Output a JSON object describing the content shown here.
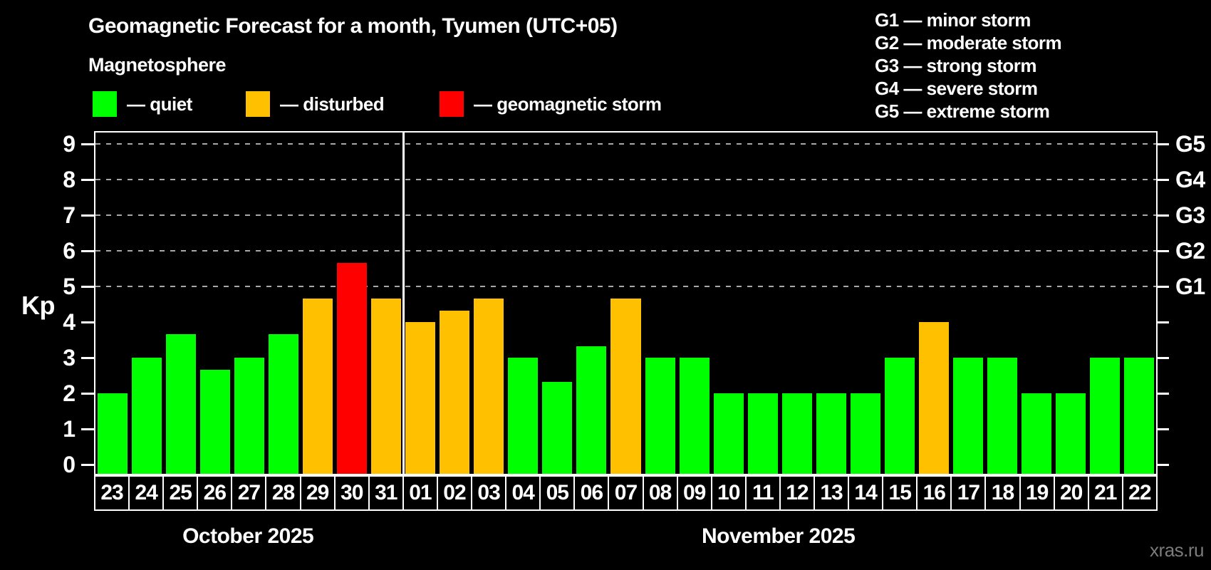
{
  "page": {
    "subtitle": "Magnetosphere",
    "watermark": "xras.ru"
  },
  "legend": {
    "items": [
      {
        "id": "quiet",
        "label": "— quiet",
        "color": "#00ff00"
      },
      {
        "id": "disturbed",
        "label": "— disturbed",
        "color": "#ffc000"
      },
      {
        "id": "storm",
        "label": "— geomagnetic storm",
        "color": "#ff0000"
      }
    ]
  },
  "g_legend": {
    "items": [
      "G1 — minor storm",
      "G2 — moderate storm",
      "G3 — strong storm",
      "G4 — severe storm",
      "G5 — extreme storm"
    ]
  },
  "chart_data": {
    "type": "bar",
    "title": "Geomagnetic Forecast for a month, Tyumen (UTC+05)",
    "ylabel": "Kp",
    "ylim": [
      -0.32,
      9.36
    ],
    "yticks": [
      0,
      1,
      2,
      3,
      4,
      5,
      6,
      7,
      8,
      9
    ],
    "gridlines_at_kp": [
      5,
      6,
      7,
      8,
      9
    ],
    "grid": true,
    "legend_position": "top",
    "right_axis": [
      {
        "kp": 5,
        "label": "G1"
      },
      {
        "kp": 6,
        "label": "G2"
      },
      {
        "kp": 7,
        "label": "G3"
      },
      {
        "kp": 8,
        "label": "G4"
      },
      {
        "kp": 9,
        "label": "G5"
      }
    ],
    "status_colors": {
      "quiet": "#00ff00",
      "disturbed": "#ffc000",
      "storm": "#ff0000"
    },
    "groups": [
      {
        "label": "October 2025",
        "bars": [
          {
            "day": "23",
            "kp": 2.0,
            "status": "quiet"
          },
          {
            "day": "24",
            "kp": 3.0,
            "status": "quiet"
          },
          {
            "day": "25",
            "kp": 3.67,
            "status": "quiet"
          },
          {
            "day": "26",
            "kp": 2.67,
            "status": "quiet"
          },
          {
            "day": "27",
            "kp": 3.0,
            "status": "quiet"
          },
          {
            "day": "28",
            "kp": 3.67,
            "status": "quiet"
          },
          {
            "day": "29",
            "kp": 4.67,
            "status": "disturbed"
          },
          {
            "day": "30",
            "kp": 5.67,
            "status": "storm"
          },
          {
            "day": "31",
            "kp": 4.67,
            "status": "disturbed"
          }
        ]
      },
      {
        "label": "November 2025",
        "bars": [
          {
            "day": "01",
            "kp": 4.0,
            "status": "disturbed"
          },
          {
            "day": "02",
            "kp": 4.33,
            "status": "disturbed"
          },
          {
            "day": "03",
            "kp": 4.67,
            "status": "disturbed"
          },
          {
            "day": "04",
            "kp": 3.0,
            "status": "quiet"
          },
          {
            "day": "05",
            "kp": 2.33,
            "status": "quiet"
          },
          {
            "day": "06",
            "kp": 3.33,
            "status": "quiet"
          },
          {
            "day": "07",
            "kp": 4.67,
            "status": "disturbed"
          },
          {
            "day": "08",
            "kp": 3.0,
            "status": "quiet"
          },
          {
            "day": "09",
            "kp": 3.0,
            "status": "quiet"
          },
          {
            "day": "10",
            "kp": 2.0,
            "status": "quiet"
          },
          {
            "day": "11",
            "kp": 2.0,
            "status": "quiet"
          },
          {
            "day": "12",
            "kp": 2.0,
            "status": "quiet"
          },
          {
            "day": "13",
            "kp": 2.0,
            "status": "quiet"
          },
          {
            "day": "14",
            "kp": 2.0,
            "status": "quiet"
          },
          {
            "day": "15",
            "kp": 3.0,
            "status": "quiet"
          },
          {
            "day": "16",
            "kp": 4.0,
            "status": "disturbed"
          },
          {
            "day": "17",
            "kp": 3.0,
            "status": "quiet"
          },
          {
            "day": "18",
            "kp": 3.0,
            "status": "quiet"
          },
          {
            "day": "19",
            "kp": 2.0,
            "status": "quiet"
          },
          {
            "day": "20",
            "kp": 2.0,
            "status": "quiet"
          },
          {
            "day": "21",
            "kp": 3.0,
            "status": "quiet"
          },
          {
            "day": "22",
            "kp": 3.0,
            "status": "quiet"
          }
        ]
      }
    ]
  }
}
